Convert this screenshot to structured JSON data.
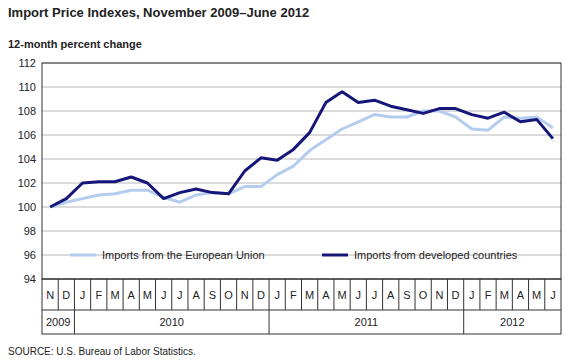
{
  "chart_data": {
    "type": "line",
    "title": "Import Price Indexes, November 2009–June 2012",
    "y_label": "12-month percent change",
    "source": "SOURCE: U.S. Bureau of Labor Statistics.",
    "categories": [
      "N",
      "D",
      "J",
      "F",
      "M",
      "A",
      "M",
      "J",
      "J",
      "A",
      "S",
      "O",
      "N",
      "D",
      "J",
      "F",
      "M",
      "A",
      "M",
      "J",
      "J",
      "A",
      "S",
      "O",
      "N",
      "D",
      "J",
      "F",
      "M",
      "A",
      "M",
      "J"
    ],
    "x_years": [
      "2009",
      "2009",
      "2010",
      "2010",
      "2010",
      "2010",
      "2010",
      "2010",
      "2010",
      "2010",
      "2010",
      "2010",
      "2010",
      "2010",
      "2011",
      "2011",
      "2011",
      "2011",
      "2011",
      "2011",
      "2011",
      "2011",
      "2011",
      "2011",
      "2011",
      "2011",
      "2012",
      "2012",
      "2012",
      "2012",
      "2012",
      "2012"
    ],
    "series": [
      {
        "name": "Imports from the European Union",
        "color": "#b4cdee",
        "values": [
          100,
          100.4,
          100.7,
          101,
          101.1,
          101.4,
          101.4,
          100.8,
          100.4,
          101,
          101.2,
          101.1,
          101.7,
          101.7,
          102.7,
          103.4,
          104.7,
          105.6,
          106.5,
          107.1,
          107.7,
          107.5,
          107.5,
          108,
          108,
          107.5,
          106.5,
          106.4,
          107.5,
          107.4,
          107.5,
          106.6
        ]
      },
      {
        "name": "Imports from developed countries",
        "color": "#16167a",
        "values": [
          100,
          100.7,
          102,
          102.1,
          102.1,
          102.5,
          102,
          100.7,
          101.2,
          101.5,
          101.2,
          101.1,
          103,
          104.1,
          103.9,
          104.8,
          106.2,
          108.7,
          109.6,
          108.7,
          108.9,
          108.4,
          108.1,
          107.8,
          108.2,
          108.2,
          107.7,
          107.4,
          107.9,
          107.1,
          107.3,
          105.7
        ]
      }
    ],
    "ylim": [
      94,
      112
    ],
    "yticks": [
      94,
      96,
      98,
      100,
      102,
      104,
      106,
      108,
      110,
      112
    ],
    "grid": true,
    "legend": "bottom"
  }
}
